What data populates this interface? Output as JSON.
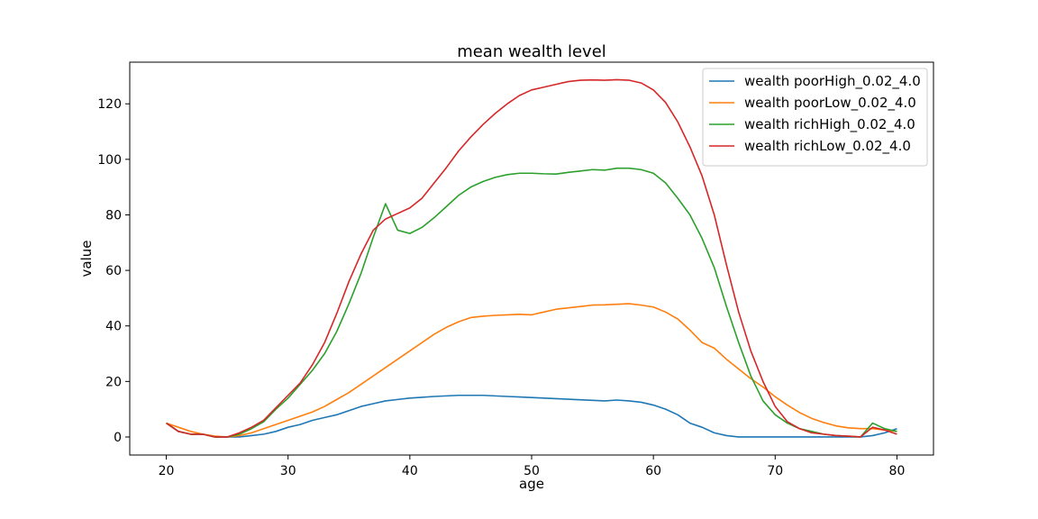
{
  "chart_data": {
    "type": "line",
    "title": "mean wealth level",
    "xlabel": "age",
    "ylabel": "value",
    "xlim": [
      17,
      83
    ],
    "ylim": [
      -6.5,
      135
    ],
    "xticks": [
      20,
      30,
      40,
      50,
      60,
      70,
      80
    ],
    "yticks": [
      0,
      20,
      40,
      60,
      80,
      100,
      120
    ],
    "grid": false,
    "legend_position": "top-right",
    "x": [
      20,
      21,
      22,
      23,
      24,
      25,
      26,
      27,
      28,
      29,
      30,
      31,
      32,
      33,
      34,
      35,
      36,
      37,
      38,
      39,
      40,
      41,
      42,
      43,
      44,
      45,
      46,
      47,
      48,
      49,
      50,
      51,
      52,
      53,
      54,
      55,
      56,
      57,
      58,
      59,
      60,
      61,
      62,
      63,
      64,
      65,
      66,
      67,
      68,
      69,
      70,
      71,
      72,
      73,
      74,
      75,
      76,
      77,
      78,
      79,
      80
    ],
    "series": [
      {
        "name": "wealth poorHigh_0.02_4.0",
        "color": "#1f77b4",
        "values": [
          5,
          2,
          1,
          1,
          0,
          0,
          0,
          0.5,
          1,
          2,
          3.5,
          4.5,
          6,
          7,
          8,
          9.5,
          11,
          12,
          13,
          13.5,
          14,
          14.3,
          14.6,
          14.8,
          15,
          15,
          15,
          14.8,
          14.6,
          14.4,
          14.2,
          14,
          13.8,
          13.6,
          13.4,
          13.2,
          13,
          13.3,
          13,
          12.5,
          11.5,
          10,
          8,
          5,
          3.5,
          1.5,
          0.5,
          0,
          0,
          0,
          0,
          0,
          0,
          0,
          0,
          0,
          0,
          0,
          0.5,
          1.5,
          3
        ]
      },
      {
        "name": "wealth poorLow_0.02_4.0",
        "color": "#ff7f0e",
        "values": [
          5,
          3.5,
          2,
          1,
          0.3,
          0,
          0.5,
          1.5,
          3,
          4.5,
          6,
          7.5,
          9,
          11,
          13.5,
          16,
          19,
          22,
          25,
          28,
          31,
          34,
          37,
          39.5,
          41.5,
          43,
          43.5,
          43.8,
          44,
          44.2,
          44,
          45,
          46,
          46.5,
          47,
          47.5,
          47.6,
          47.8,
          48,
          47.5,
          46.8,
          45,
          42.5,
          38.5,
          34,
          32,
          28,
          24.5,
          21,
          18,
          14.5,
          11.5,
          8.8,
          6.7,
          5.2,
          4,
          3.3,
          3,
          3,
          2.5,
          2
        ]
      },
      {
        "name": "wealth richHigh_0.02_4.0",
        "color": "#2ca02c",
        "values": [
          5,
          2,
          1,
          1,
          0,
          0,
          1,
          3,
          5.5,
          10,
          14,
          19,
          24,
          30,
          38,
          48,
          59,
          72,
          84,
          74.5,
          73.3,
          75.5,
          79,
          83,
          87,
          90,
          92,
          93.5,
          94.5,
          95,
          95,
          94.8,
          94.7,
          95.3,
          95.8,
          96.3,
          96.1,
          96.8,
          96.8,
          96.3,
          95,
          91.5,
          86,
          80,
          71.5,
          61,
          47,
          34,
          22,
          13,
          8,
          5,
          3,
          2,
          1,
          0.5,
          0.3,
          0,
          5,
          3,
          2
        ]
      },
      {
        "name": "wealth richLow_0.02_4.0",
        "color": "#d62728",
        "values": [
          5,
          2,
          1,
          1,
          0,
          0,
          1.5,
          3.5,
          6,
          10.5,
          15,
          19.5,
          26,
          34,
          44.5,
          56,
          66,
          74.5,
          78.5,
          80.5,
          82.5,
          86,
          91.5,
          97,
          103,
          108,
          112.5,
          116.5,
          120,
          123,
          125,
          126,
          127,
          128,
          128.5,
          128.6,
          128.5,
          128.7,
          128.5,
          127.5,
          125,
          120.5,
          113.5,
          104.5,
          94,
          80,
          62,
          45,
          31,
          20,
          11,
          5.5,
          3,
          1.5,
          1,
          0.5,
          0.3,
          0,
          3.5,
          2.5,
          1
        ]
      }
    ]
  }
}
